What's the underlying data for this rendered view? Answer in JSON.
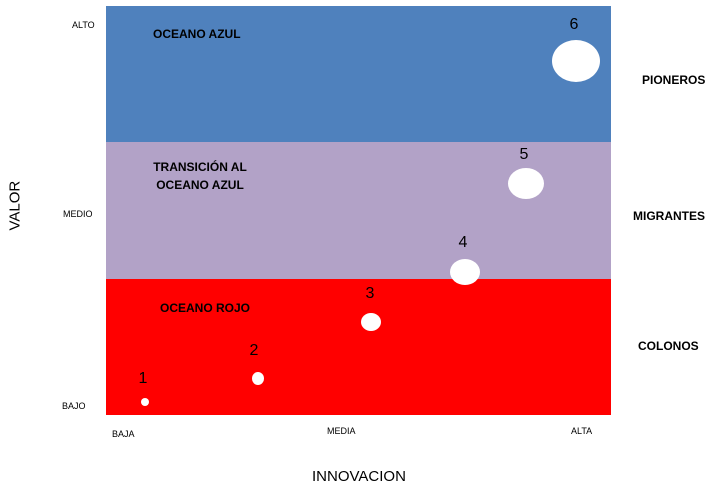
{
  "colors": {
    "blue_band": "#4F81BD",
    "purple_band": "#B2A2C7",
    "red_band": "#FF0000",
    "bubble": "#FFFFFF"
  },
  "zones": {
    "top": "OCEANO AZUL",
    "middle_line1": "TRANSICIÓN AL",
    "middle_line2": "OCEANO AZUL",
    "bottom": "OCEANO ROJO"
  },
  "y_axis": {
    "title": "VALOR",
    "ticks": [
      "ALTO",
      "MEDIO",
      "BAJO"
    ]
  },
  "x_axis": {
    "title": "INNOVACION",
    "ticks": [
      "BAJA",
      "MEDIA",
      "ALTA"
    ]
  },
  "categories": [
    "PIONEROS",
    "MIGRANTES",
    "COLONOS"
  ],
  "bubbles": [
    {
      "label": "1"
    },
    {
      "label": "2"
    },
    {
      "label": "3"
    },
    {
      "label": "4"
    },
    {
      "label": "5"
    },
    {
      "label": "6"
    }
  ]
}
